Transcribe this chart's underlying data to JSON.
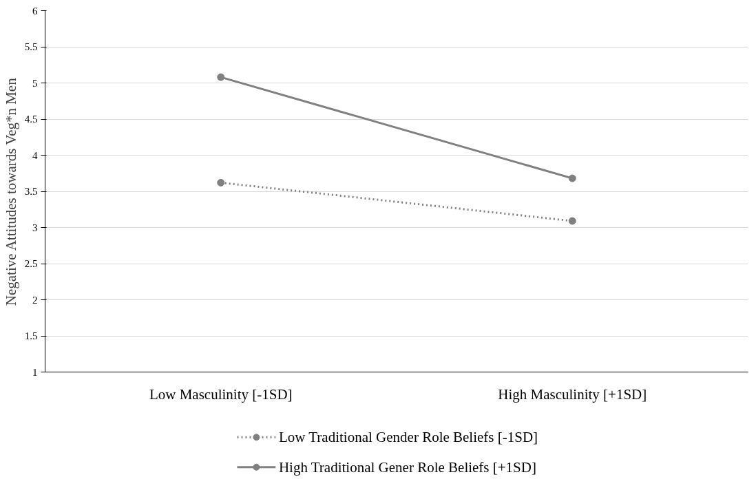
{
  "chart_data": {
    "type": "line",
    "ylabel": "Negative Attitudes towards Veg*n Men",
    "categories": [
      "Low Masculinity [-1SD]",
      "High Masculinity [+1SD]"
    ],
    "series": [
      {
        "name": "Low Traditional Gender Role Beliefs [-1SD]",
        "color": "#808080",
        "values": [
          3.62,
          3.09
        ],
        "line_style": "dotted"
      },
      {
        "name": "High Traditional Gener Role Beliefs [+1SD]",
        "color": "#808080",
        "values": [
          5.08,
          3.68
        ],
        "line_style": "solid"
      }
    ],
    "ylim": [
      1,
      6
    ],
    "yticks": [
      1,
      1.5,
      2,
      2.5,
      3,
      3.5,
      4,
      4.5,
      5,
      5.5,
      6
    ],
    "grid": "y",
    "legend": "bottom",
    "marker": "circle"
  }
}
